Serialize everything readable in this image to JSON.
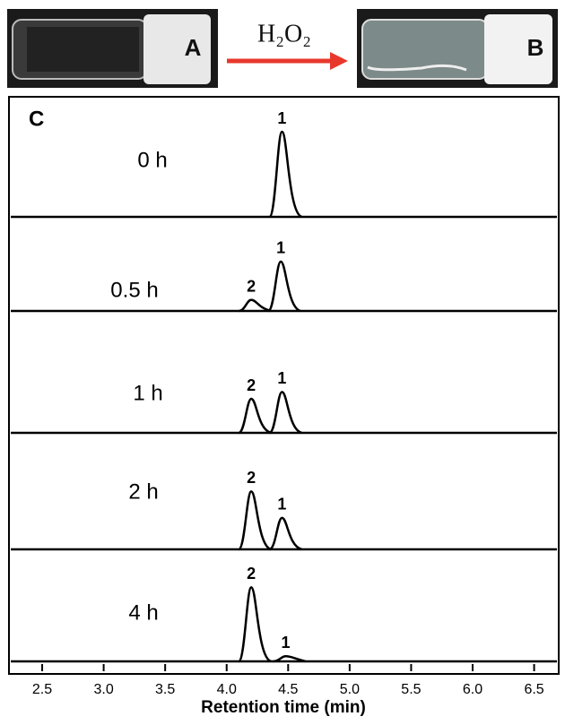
{
  "photos": {
    "left_label": "A",
    "right_label": "B",
    "reagent": "H₂O₂"
  },
  "chart_data": {
    "type": "chromatogram",
    "panel_label": "C",
    "x_label": "Retention time  (min)",
    "xlim": [
      2.23,
      6.7
    ],
    "xticks": [
      2.5,
      {
        "value": 3,
        "label": "3.0"
      },
      3.5,
      {
        "value": 4,
        "label": "4.0"
      },
      4.5,
      {
        "value": 5,
        "label": "5.0"
      },
      5.5,
      {
        "value": 6,
        "label": "6.0"
      },
      6.5
    ],
    "traces": [
      {
        "name": "0 h",
        "peaks": [
          {
            "label": "1",
            "x": 4.45,
            "height": 100
          }
        ]
      },
      {
        "name": "0.5 h",
        "peaks": [
          {
            "label": "2",
            "x": 4.2,
            "height": 13
          },
          {
            "label": "1",
            "x": 4.44,
            "height": 58
          }
        ]
      },
      {
        "name": "1 h",
        "peaks": [
          {
            "label": "2",
            "x": 4.2,
            "height": 40
          },
          {
            "label": "1",
            "x": 4.45,
            "height": 48
          }
        ]
      },
      {
        "name": "2 h",
        "peaks": [
          {
            "label": "2",
            "x": 4.2,
            "height": 68
          },
          {
            "label": "1",
            "x": 4.45,
            "height": 37
          }
        ]
      },
      {
        "name": "4 h",
        "peaks": [
          {
            "label": "2",
            "x": 4.2,
            "height": 87
          },
          {
            "label": "1",
            "x": 4.48,
            "height": 6
          }
        ]
      }
    ]
  }
}
